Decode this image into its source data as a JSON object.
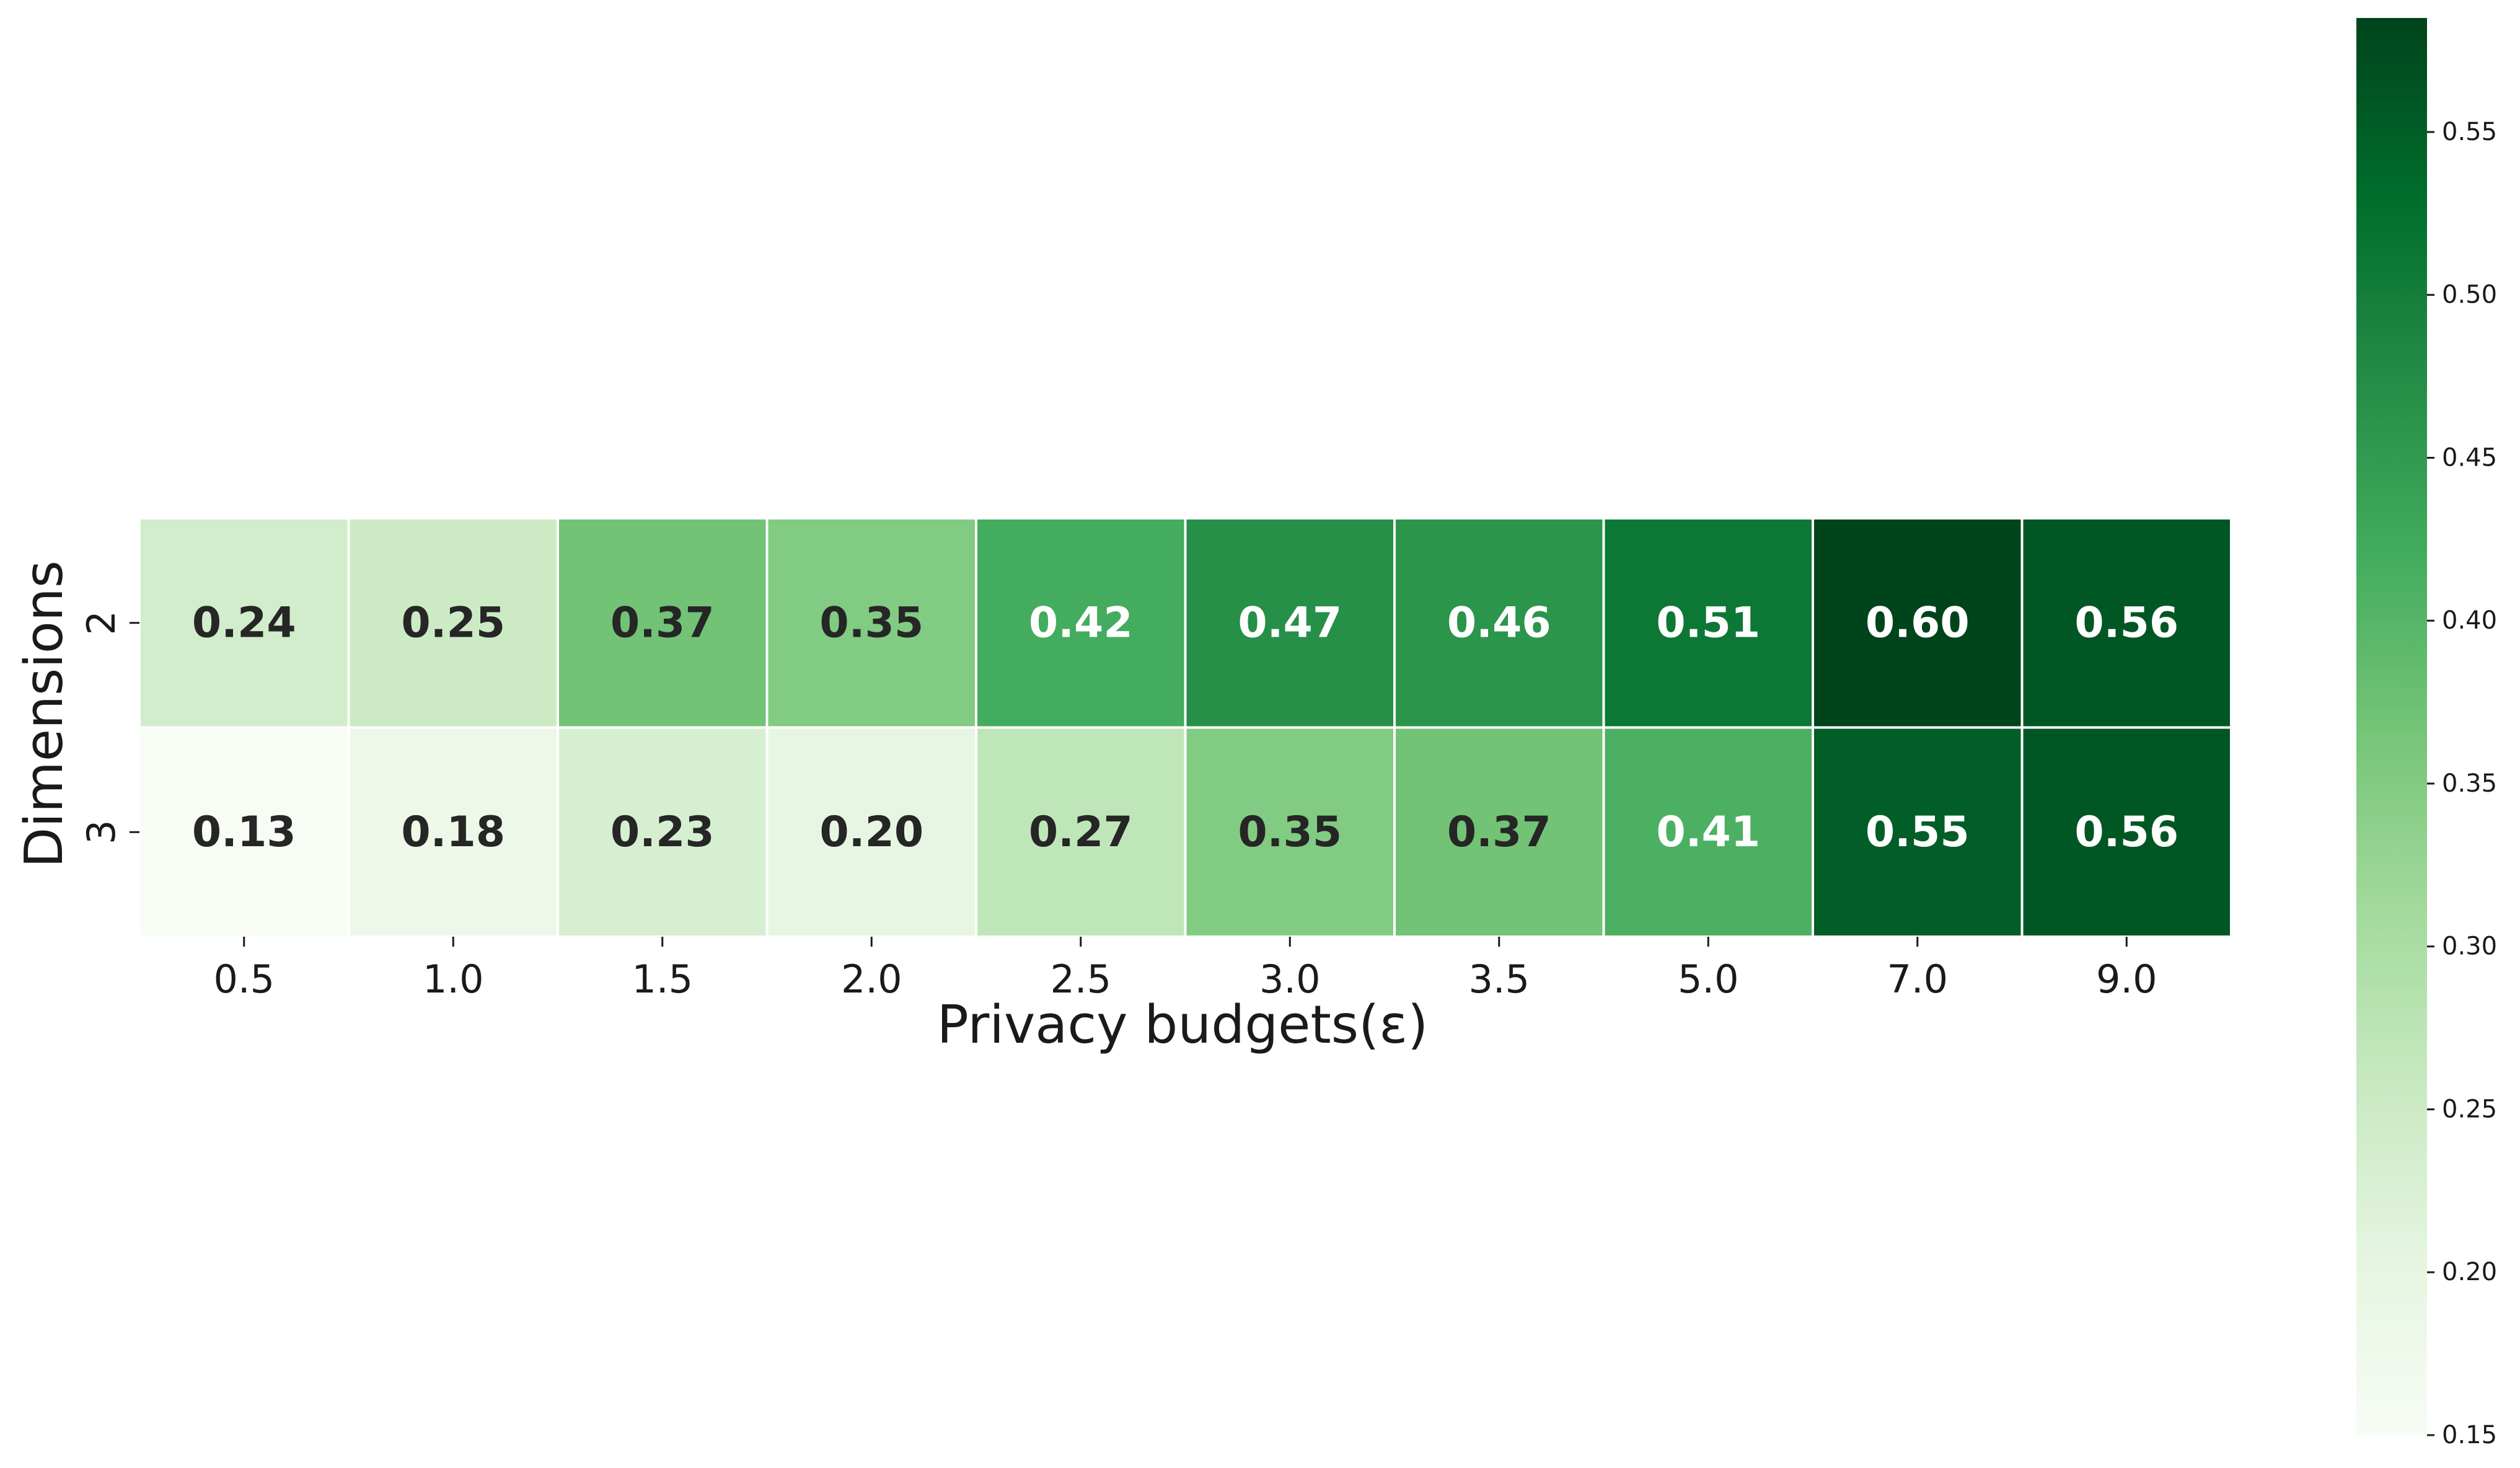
{
  "chart_data": {
    "type": "heatmap",
    "x_categories": [
      "0.5",
      "1.0",
      "1.5",
      "2.0",
      "2.5",
      "3.0",
      "3.5",
      "5.0",
      "7.0",
      "9.0"
    ],
    "y_categories": [
      "2",
      "3"
    ],
    "values": [
      [
        0.24,
        0.25,
        0.37,
        0.35,
        0.42,
        0.47,
        0.46,
        0.51,
        0.6,
        0.56
      ],
      [
        0.13,
        0.18,
        0.23,
        0.2,
        0.27,
        0.35,
        0.37,
        0.41,
        0.55,
        0.56
      ]
    ],
    "cell_labels": [
      [
        "0.24",
        "0.25",
        "0.37",
        "0.35",
        "0.42",
        "0.47",
        "0.46",
        "0.51",
        "0.60",
        "0.56"
      ],
      [
        "0.13",
        "0.18",
        "0.23",
        "0.20",
        "0.27",
        "0.35",
        "0.37",
        "0.41",
        "0.55",
        "0.56"
      ]
    ],
    "xlabel": "Privacy budgets(ε)",
    "ylabel": "Dimensions",
    "colorbar": {
      "colormap": "Greens",
      "range": [
        0.15,
        0.585
      ],
      "ticks": [
        "0.15",
        "0.20",
        "0.25",
        "0.30",
        "0.35",
        "0.40",
        "0.45",
        "0.50",
        "0.55"
      ]
    },
    "grid": false
  }
}
